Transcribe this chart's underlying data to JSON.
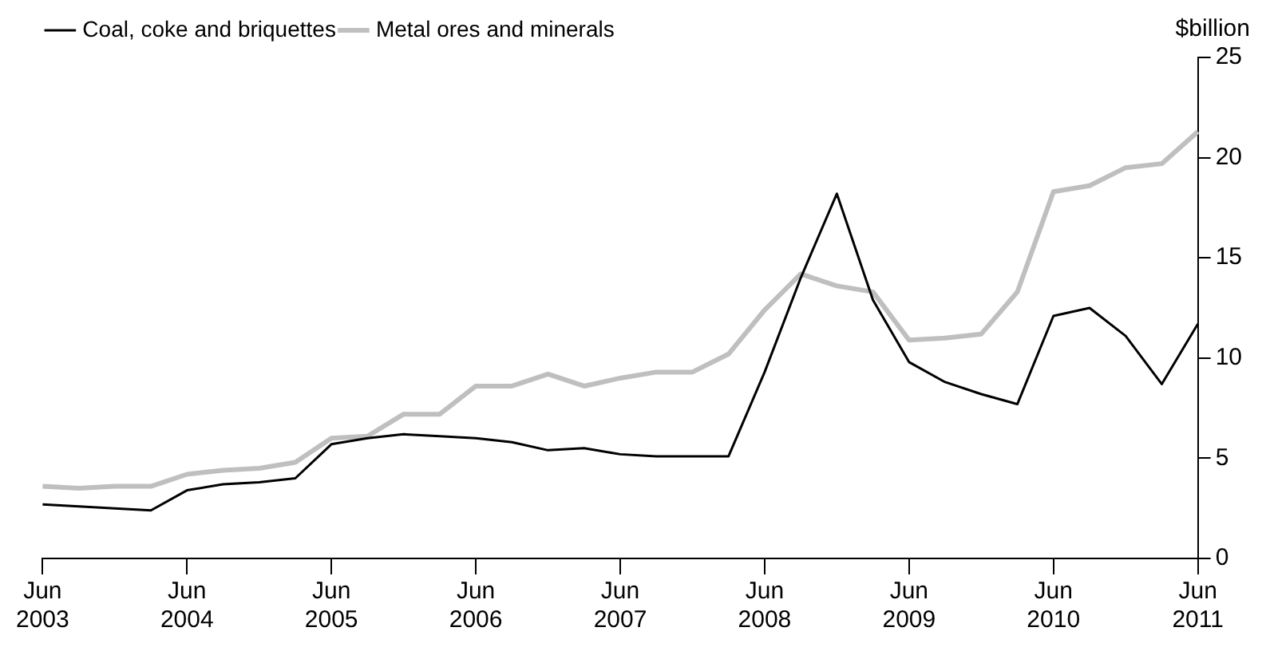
{
  "chart_data": {
    "type": "line",
    "ylabel": "$billion",
    "categories": [
      "Jun 2003",
      null,
      null,
      null,
      "Jun 2004",
      null,
      null,
      null,
      "Jun 2005",
      null,
      null,
      null,
      "Jun 2006",
      null,
      null,
      null,
      "Jun 2007",
      null,
      null,
      null,
      "Jun 2008",
      null,
      null,
      null,
      "Jun 2009",
      null,
      null,
      null,
      "Jun 2010",
      null,
      null,
      null,
      "Jun 2011"
    ],
    "series": [
      {
        "name": "Coal, coke and briquettes",
        "color": "#000000",
        "values": [
          2.7,
          2.6,
          2.5,
          2.4,
          3.4,
          3.7,
          3.8,
          4.0,
          5.7,
          6.0,
          6.2,
          6.1,
          6.0,
          5.8,
          5.4,
          5.5,
          5.2,
          5.1,
          5.1,
          5.1,
          9.3,
          14.0,
          18.2,
          12.9,
          9.8,
          8.8,
          8.2,
          7.7,
          12.1,
          12.5,
          11.1,
          8.7,
          11.7
        ]
      },
      {
        "name": "Metal ores and minerals",
        "color": "#bfbfbf",
        "values": [
          3.6,
          3.5,
          3.6,
          3.6,
          4.2,
          4.4,
          4.5,
          4.8,
          6.0,
          6.1,
          7.2,
          7.2,
          8.6,
          8.6,
          9.2,
          8.6,
          9.0,
          9.3,
          9.3,
          10.2,
          12.4,
          14.2,
          13.6,
          13.3,
          10.9,
          11.0,
          11.2,
          13.3,
          18.3,
          18.6,
          19.5,
          19.7,
          21.3
        ]
      }
    ],
    "ylim": [
      0,
      25
    ],
    "yticks": [
      0,
      5,
      10,
      15,
      20,
      25
    ],
    "grid": false,
    "legend": "top left",
    "marker": "none",
    "line_style": "solid"
  }
}
